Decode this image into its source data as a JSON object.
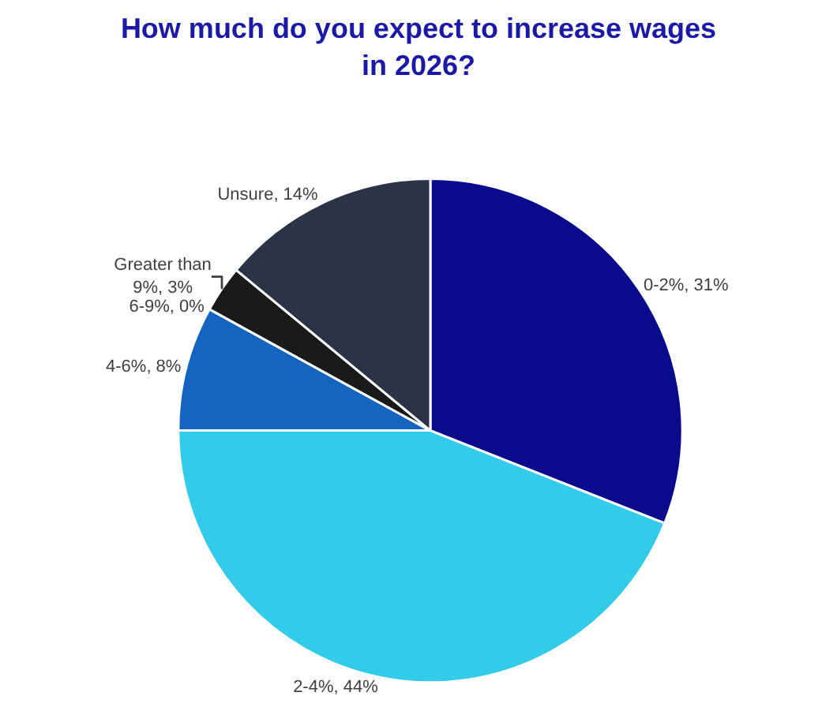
{
  "chart_data": {
    "type": "pie",
    "title": "How much do you expect to increase wages in 2026?",
    "categories": [
      "0-2%",
      "2-4%",
      "4-6%",
      "6-9%",
      "Greater than 9%",
      "Unsure"
    ],
    "values": [
      31,
      44,
      8,
      0,
      3,
      14
    ],
    "colors": [
      "#0a0a8c",
      "#33cbea",
      "#1565c0",
      "#6e6e6e",
      "#1a1a1a",
      "#2b3447"
    ],
    "value_labels": [
      ", 31%",
      ", 44%",
      ", 8%",
      ", 0%",
      ", 3%",
      ", 14%"
    ]
  }
}
